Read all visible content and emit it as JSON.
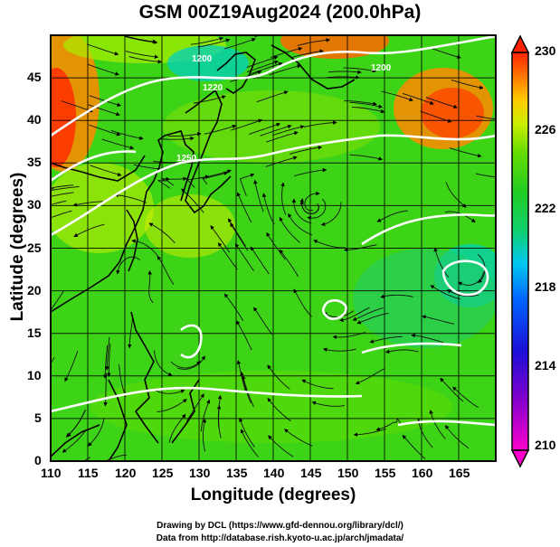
{
  "header": {
    "title": "GSM 00Z19Aug2024 (200.0hPa)"
  },
  "axes": {
    "xlabel": "Longitude (degrees)",
    "ylabel": "Latitude  (degrees)",
    "x_ticks": [
      "110",
      "115",
      "120",
      "125",
      "130",
      "135",
      "140",
      "145",
      "150",
      "155",
      "160",
      "165"
    ],
    "y_ticks": [
      "0",
      "5",
      "10",
      "15",
      "20",
      "25",
      "30",
      "35",
      "40",
      "45"
    ],
    "x_range": [
      110,
      170
    ],
    "y_range": [
      0,
      50
    ]
  },
  "colorbar": {
    "ticks": [
      "230",
      "226",
      "222",
      "218",
      "214",
      "210"
    ],
    "range": [
      210,
      230
    ],
    "colors": [
      "#ff00cc",
      "#9900cc",
      "#2200dd",
      "#0044ff",
      "#00aaff",
      "#00dddd",
      "#22cc22",
      "#44dd00",
      "#99ee00",
      "#ffdd00",
      "#ff8800",
      "#ff3300"
    ]
  },
  "contour_labels": [
    "1200",
    "1220",
    "1250",
    "1200"
  ],
  "credits": {
    "line1": "Drawing by DCL (https://www.gfd-dennou.org/library/dcl/)",
    "line2": "Data from http://database.rish.kyoto-u.ac.jp/arch/jmadata/"
  }
}
